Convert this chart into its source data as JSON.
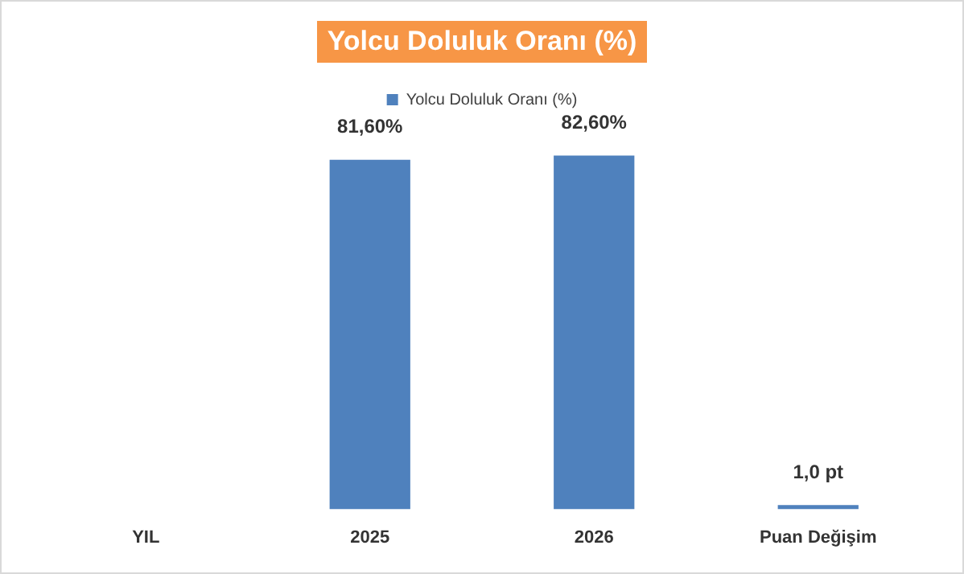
{
  "chart_data": {
    "type": "bar",
    "title": "Yolcu Doluluk Oranı (%)",
    "categories": [
      "YIL",
      "2025",
      "2026",
      "Puan Değişim"
    ],
    "series": [
      {
        "name": "Yolcu Doluluk Oranı (%)",
        "color": "#4f81bd",
        "values": [
          null,
          81.6,
          82.6,
          1.0
        ],
        "value_labels": [
          null,
          "81,60%",
          "82,60%",
          "1,0 pt"
        ]
      }
    ],
    "legend": "top",
    "grid": false
  }
}
